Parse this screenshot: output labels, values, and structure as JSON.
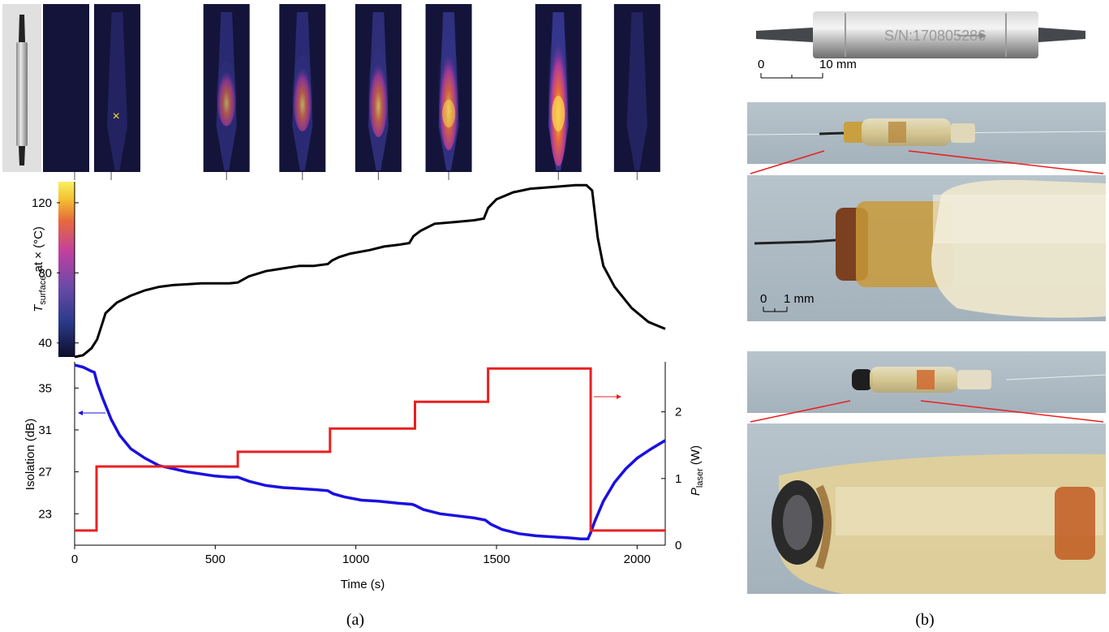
{
  "panel_labels": {
    "a": "(a)",
    "b": "(b)"
  },
  "chart_data": [
    {
      "type": "line",
      "ylabel": "T_surface at × (°C)",
      "ylabel_parts": {
        "symbol": "T",
        "subscript": "surface",
        "rest": " at × (°C)"
      },
      "xlim": [
        0,
        2100
      ],
      "ylim": [
        32,
        132
      ],
      "yticks": [
        40,
        80,
        120
      ],
      "colorbar_ticks": [
        "120",
        "80",
        "40"
      ],
      "series": [
        {
          "color": "#000000",
          "x": [
            0,
            30,
            60,
            80,
            100,
            110,
            130,
            150,
            200,
            250,
            300,
            350,
            400,
            450,
            500,
            550,
            580,
            620,
            680,
            720,
            760,
            800,
            850,
            900,
            915,
            940,
            980,
            1050,
            1100,
            1150,
            1190,
            1205,
            1230,
            1280,
            1350,
            1420,
            1455,
            1470,
            1500,
            1560,
            1620,
            1700,
            1780,
            1820,
            1840,
            1860,
            1880,
            1920,
            1980,
            2040,
            2100
          ],
          "y": [
            32,
            33,
            37,
            42,
            52,
            57,
            60,
            63,
            67,
            70,
            72,
            73,
            73.5,
            74,
            74,
            74,
            74.5,
            78,
            81,
            82,
            83,
            84,
            84,
            85,
            87,
            89,
            91,
            93,
            95,
            96,
            97,
            101,
            104,
            108,
            109,
            110,
            111,
            117,
            122,
            126,
            128,
            129,
            130,
            130,
            127,
            100,
            84,
            72,
            60,
            52,
            48
          ]
        }
      ]
    },
    {
      "type": "line",
      "xlabel": "Time (s)",
      "ylabel": "Isolation (dB)",
      "y2label_parts": {
        "symbol": "P",
        "subscript": "laser",
        "rest": " (W)"
      },
      "xlim": [
        0,
        2100
      ],
      "ylim": [
        20,
        37.5
      ],
      "y2lim": [
        0,
        2.75
      ],
      "xticks": [
        0,
        500,
        1000,
        1500,
        2000
      ],
      "yticks": [
        23,
        27,
        31,
        35
      ],
      "y2ticks": [
        0,
        1,
        2
      ],
      "series": [
        {
          "color": "#1a10e0",
          "axis": "left",
          "x": [
            0,
            30,
            60,
            70,
            80,
            100,
            130,
            160,
            200,
            250,
            300,
            350,
            400,
            450,
            500,
            550,
            580,
            620,
            680,
            740,
            800,
            860,
            900,
            920,
            960,
            1020,
            1080,
            1150,
            1200,
            1210,
            1240,
            1300,
            1360,
            1420,
            1460,
            1480,
            1520,
            1580,
            1640,
            1700,
            1760,
            1800,
            1825,
            1835,
            1850,
            1880,
            1920,
            1960,
            2000,
            2050,
            2100
          ],
          "y": [
            37.2,
            37.0,
            36.6,
            36.5,
            35.5,
            34.0,
            32.0,
            30.5,
            29.2,
            28.3,
            27.6,
            27.3,
            27.0,
            26.8,
            26.6,
            26.5,
            26.5,
            26.1,
            25.7,
            25.5,
            25.4,
            25.3,
            25.2,
            24.9,
            24.6,
            24.3,
            24.2,
            24.0,
            23.9,
            23.8,
            23.4,
            23.0,
            22.8,
            22.6,
            22.4,
            22.0,
            21.5,
            21.1,
            20.9,
            20.8,
            20.7,
            20.6,
            20.6,
            21.2,
            22.3,
            24.2,
            26.0,
            27.3,
            28.3,
            29.2,
            30.0
          ]
        },
        {
          "color": "#e82020",
          "axis": "right",
          "step": true,
          "x": [
            0,
            78,
            78,
            580,
            580,
            908,
            908,
            1210,
            1210,
            1470,
            1470,
            1835,
            1835,
            2100
          ],
          "y": [
            0.22,
            0.22,
            1.18,
            1.18,
            1.4,
            1.4,
            1.75,
            1.75,
            2.15,
            2.15,
            2.65,
            2.65,
            0.22,
            0.22
          ]
        }
      ]
    }
  ],
  "thermal_frames": [
    {
      "time": 0,
      "intensity": 0.0,
      "marker": false
    },
    {
      "time": 130,
      "intensity": 0.15,
      "marker": true
    },
    {
      "time": 540,
      "intensity": 0.45,
      "marker": false
    },
    {
      "time": 810,
      "intensity": 0.52,
      "marker": false
    },
    {
      "time": 1080,
      "intensity": 0.6,
      "marker": false
    },
    {
      "time": 1330,
      "intensity": 0.78,
      "marker": false
    },
    {
      "time": 1720,
      "intensity": 1.0,
      "marker": false
    },
    {
      "time": 2000,
      "intensity": 0.12,
      "marker": false
    }
  ],
  "photos": {
    "isolator_label": "S/N:170805286",
    "scale_top": {
      "zero": "0",
      "label": "10 mm"
    },
    "scale_mid": {
      "zero": "0",
      "label": "1 mm"
    }
  },
  "colors": {
    "colorbar": [
      "#0d0d2a",
      "#2a3a8a",
      "#6a4aa8",
      "#c040a0",
      "#e86a3a",
      "#f4c030",
      "#f8f060"
    ]
  }
}
